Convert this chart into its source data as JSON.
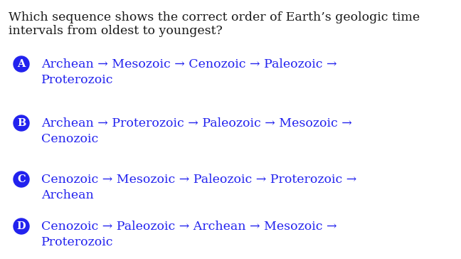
{
  "title_line1": "Which sequence shows the correct order of Earth’s geologic time",
  "title_line2": "intervals from oldest to youngest?",
  "bg_color": "#ffffff",
  "text_color": "#1a1a1a",
  "option_color": "#2222ee",
  "circle_color": "#2222ee",
  "options": [
    {
      "label": "A",
      "line1": "Archean → Mesozoic → Cenozoic → Paleozoic →",
      "line2": "Proterozoic"
    },
    {
      "label": "B",
      "line1": "Archean → Proterozoic → Paleozoic → Mesozoic →",
      "line2": "Cenozoic"
    },
    {
      "label": "C",
      "line1": "Cenozoic → Mesozoic → Paleozoic → Proterozoic →",
      "line2": "Archean"
    },
    {
      "label": "D",
      "line1": "Cenozoic → Paleozoic → Archean → Mesozoic →",
      "line2": "Proterozoic"
    }
  ],
  "title_fontsize": 12.5,
  "option_fontsize": 12.5,
  "label_fontsize": 10.5
}
